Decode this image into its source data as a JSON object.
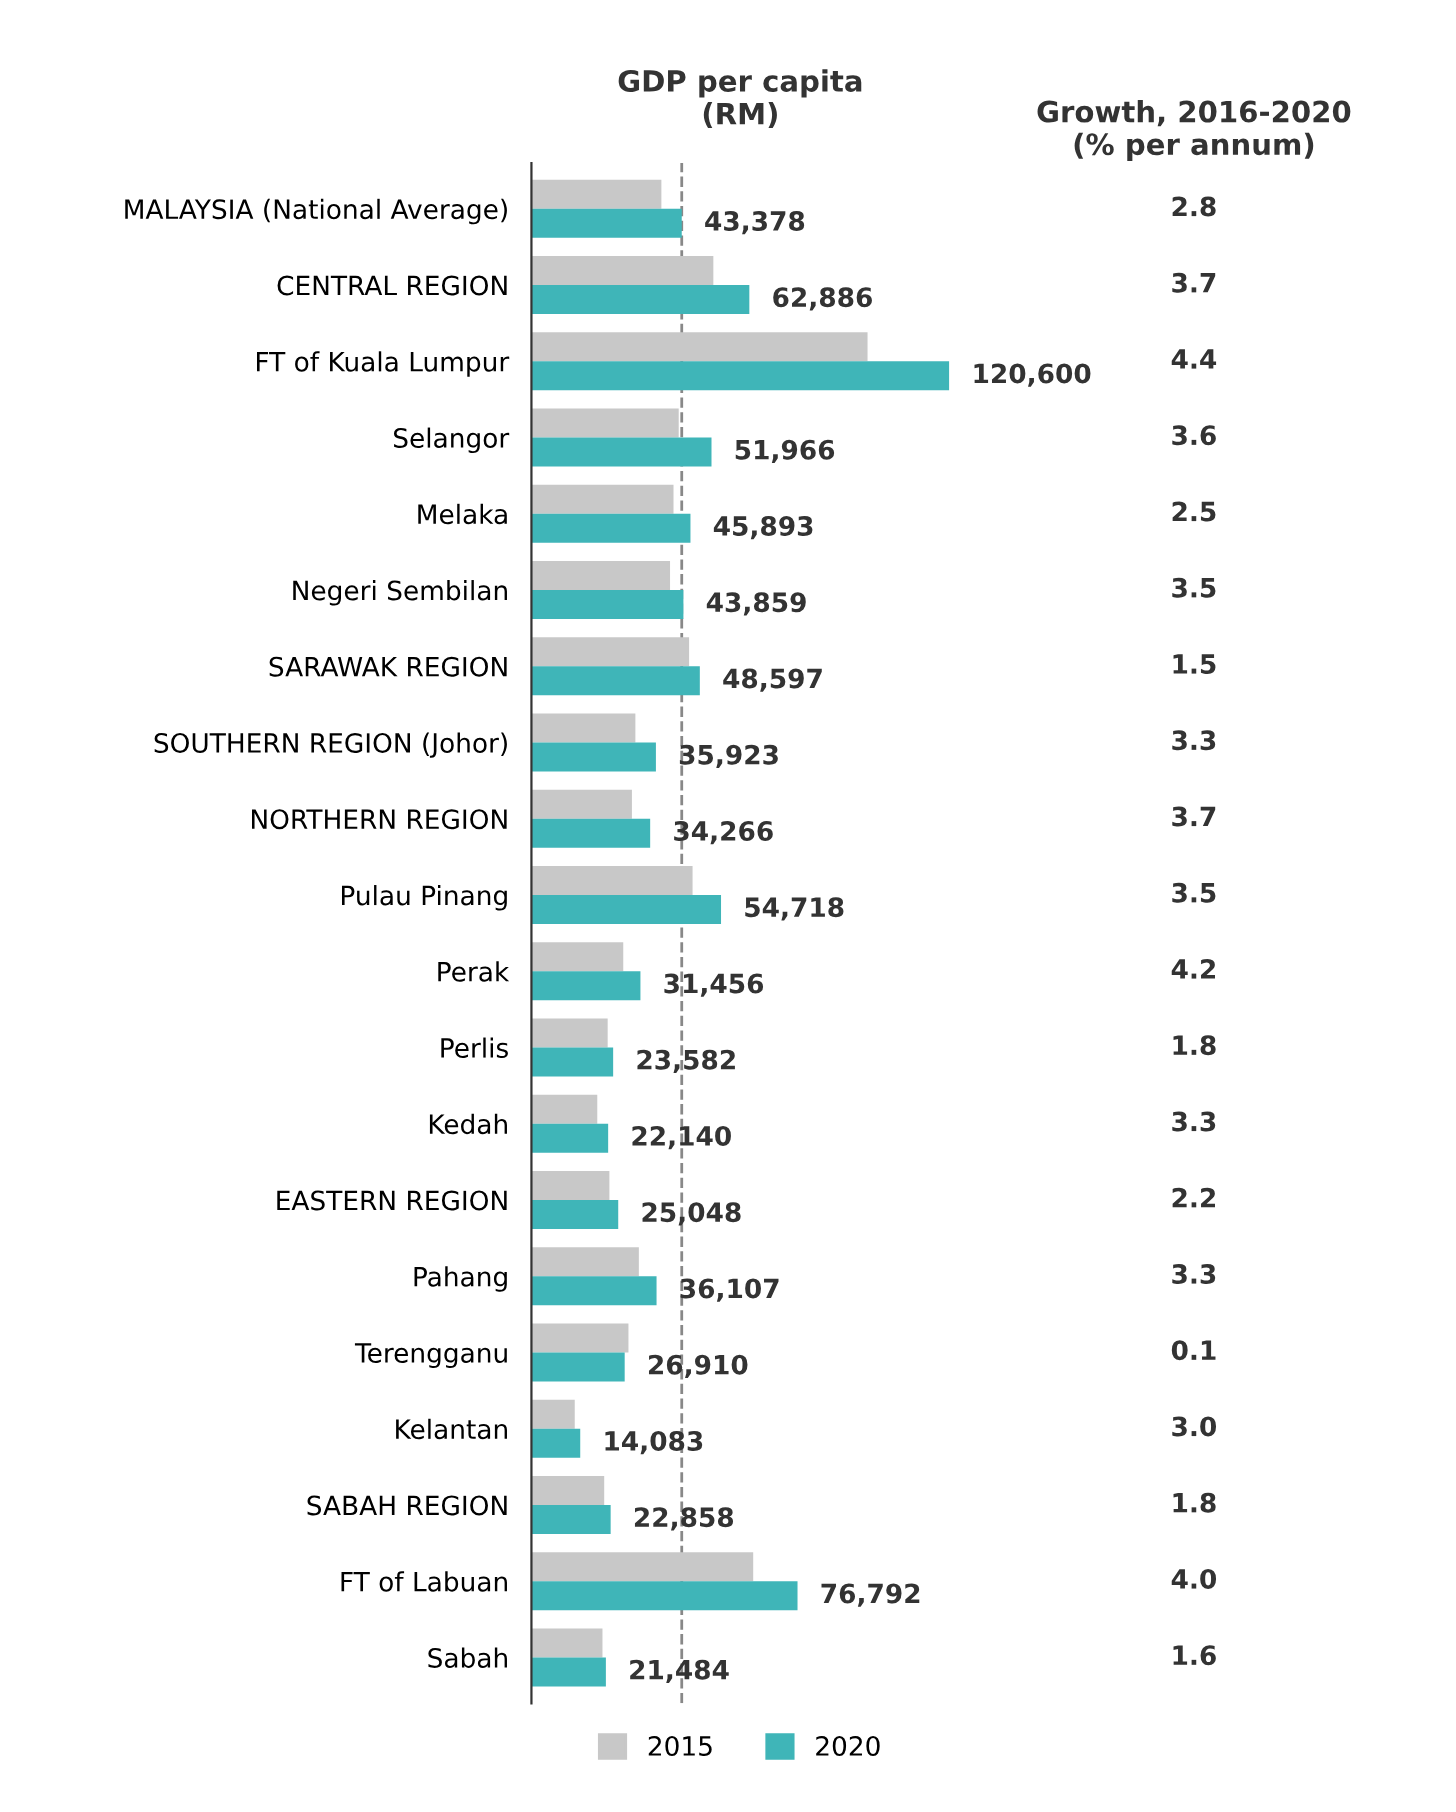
{
  "chart_data": {
    "type": "bar",
    "orientation": "horizontal",
    "title": "GDP per capita\n(RM)",
    "categories": [
      "MALAYSIA (National Average)",
      "CENTRAL REGION",
      "FT of Kuala Lumpur",
      "Selangor",
      "Melaka",
      "Negeri Sembilan",
      "SARAWAK REGION",
      "SOUTHERN REGION (Johor)",
      "NORTHERN REGION",
      "Pulau Pinang",
      "Perak",
      "Perlis",
      "Kedah",
      "EASTERN REGION",
      "Pahang",
      "Terengganu",
      "Kelantan",
      "SABAH REGION",
      "FT of Labuan",
      "Sabah"
    ],
    "series": [
      {
        "name": "2015",
        "color": "#c8c8c8",
        "values": [
          37500,
          52500,
          97000,
          42500,
          41000,
          40000,
          45500,
          30000,
          29000,
          46500,
          26500,
          22000,
          19000,
          22500,
          31000,
          28000,
          12500,
          21000,
          64000,
          20500
        ]
      },
      {
        "name": "2020",
        "color": "#3fb5b8",
        "values": [
          43378,
          62886,
          120600,
          51966,
          45893,
          43859,
          48597,
          35923,
          34266,
          54718,
          31456,
          23582,
          22140,
          25048,
          36107,
          26910,
          14083,
          22858,
          76792,
          21484
        ],
        "value_labels": [
          "43,378",
          "62,886",
          "120,600",
          "51,966",
          "45,893",
          "43,859",
          "48,597",
          "35,923",
          "34,266",
          "54,718",
          "31,456",
          "23,582",
          "22,140",
          "25,048",
          "36,107",
          "26,910",
          "14,083",
          "22,858",
          "76,792",
          "21,484"
        ]
      }
    ],
    "tick_labels": "y",
    "ref_lines": [
      {
        "axis": "x",
        "value": 43378,
        "label": null,
        "color": "#888888",
        "line_style": "dashed"
      }
    ],
    "annotations": [
      "Growth, 2016-2020\n(% per annum)",
      "2.8",
      "3.7",
      "4.4",
      "3.6",
      "2.5",
      "3.5",
      "1.5",
      "3.3",
      "3.7",
      "3.5",
      "4.2",
      "1.8",
      "3.3",
      "2.2",
      "3.3",
      "0.1",
      "3.0",
      "1.8",
      "4.0",
      "1.6"
    ],
    "legend": "bottom"
  }
}
